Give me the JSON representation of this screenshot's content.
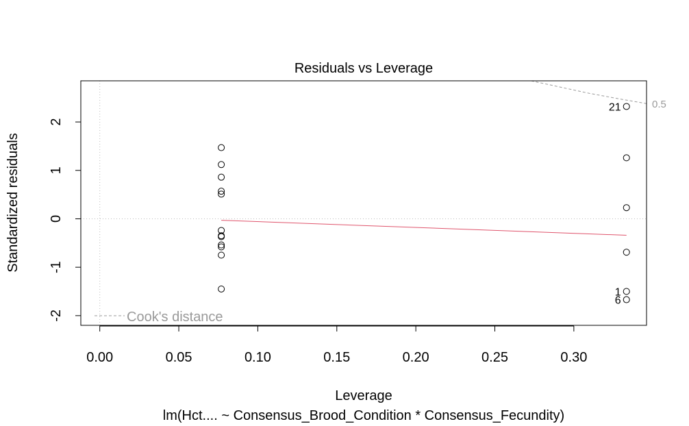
{
  "chart_data": {
    "type": "scatter",
    "title": "Residuals vs Leverage",
    "xlabel": "Leverage",
    "ylabel": "Standardized residuals",
    "subtitle": "lm(Hct.... ~ Consensus_Brood_Condition * Consensus_Fecundity)",
    "xlim": [
      -0.012,
      0.346
    ],
    "ylim": [
      -2.2,
      2.85
    ],
    "x_ticks": [
      "0.00",
      "0.05",
      "0.10",
      "0.15",
      "0.20",
      "0.25",
      "0.30"
    ],
    "x_tick_values": [
      0.0,
      0.05,
      0.1,
      0.15,
      0.2,
      0.25,
      0.3
    ],
    "y_ticks": [
      "-2",
      "-1",
      "0",
      "1",
      "2"
    ],
    "y_tick_values": [
      -2,
      -1,
      0,
      1,
      2
    ],
    "points": [
      {
        "x": 0.0769,
        "y": 1.47
      },
      {
        "x": 0.0769,
        "y": 1.12
      },
      {
        "x": 0.0769,
        "y": 0.86
      },
      {
        "x": 0.0769,
        "y": 0.57
      },
      {
        "x": 0.0769,
        "y": 0.51
      },
      {
        "x": 0.0769,
        "y": -0.24
      },
      {
        "x": 0.0769,
        "y": -0.35
      },
      {
        "x": 0.0769,
        "y": -0.37
      },
      {
        "x": 0.0769,
        "y": -0.54
      },
      {
        "x": 0.0769,
        "y": -0.58
      },
      {
        "x": 0.0769,
        "y": -0.75
      },
      {
        "x": 0.0769,
        "y": -1.45
      },
      {
        "x": 0.3333,
        "y": 2.32
      },
      {
        "x": 0.3333,
        "y": 1.26
      },
      {
        "x": 0.3333,
        "y": 0.23
      },
      {
        "x": 0.3333,
        "y": -0.69
      },
      {
        "x": 0.3333,
        "y": -1.5
      },
      {
        "x": 0.3333,
        "y": -1.67
      }
    ],
    "point_labels": [
      {
        "text": "21",
        "x": 0.3333,
        "y": 2.32
      },
      {
        "text": "1",
        "x": 0.3333,
        "y": -1.5
      },
      {
        "text": "6",
        "x": 0.3333,
        "y": -1.67
      }
    ],
    "smooth_line": [
      {
        "x": 0.0769,
        "y": -0.03
      },
      {
        "x": 0.3333,
        "y": -0.34
      }
    ],
    "cooks_contour_label": "0.5",
    "cooks_contour": [
      {
        "x": 0.273,
        "y": 2.85
      },
      {
        "x": 0.29,
        "y": 2.73
      },
      {
        "x": 0.31,
        "y": 2.59
      },
      {
        "x": 0.33,
        "y": 2.47
      },
      {
        "x": 0.346,
        "y": 2.38
      }
    ],
    "legend": {
      "label": "Cook's distance",
      "position": "bottom-left"
    },
    "grid": false,
    "reference_lines": {
      "h": 0,
      "v": 0
    },
    "colors": {
      "points": "#000000",
      "smooth": "#DF536B",
      "cooks": "#999999",
      "reference": "#bbbbbb",
      "legend_text": "#999999"
    }
  }
}
